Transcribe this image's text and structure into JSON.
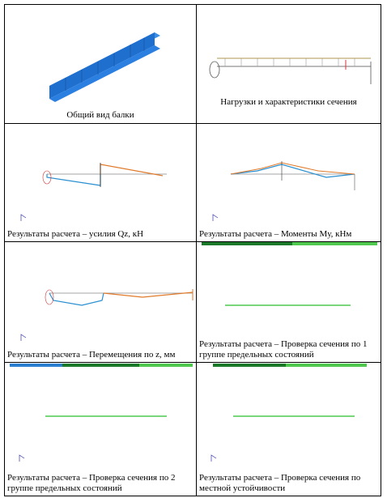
{
  "cells": [
    {
      "caption": "Общий вид балки"
    },
    {
      "caption": "Нагрузки и характеристики сечения"
    },
    {
      "caption": "Результаты расчета – усилия Qz, кН"
    },
    {
      "caption": "Результаты расчета – Моменты Mу, кНм"
    },
    {
      "caption": "Результаты расчета – Перемещения по z, мм"
    },
    {
      "caption": "Результаты расчета – Проверка сечения по 1 группе предельных состояний"
    },
    {
      "caption": "Результаты расчета – Проверка сечения по 2 группе предельных состояний"
    },
    {
      "caption": "Результаты расчета – Проверка сечения по местной устойчивости"
    }
  ]
}
